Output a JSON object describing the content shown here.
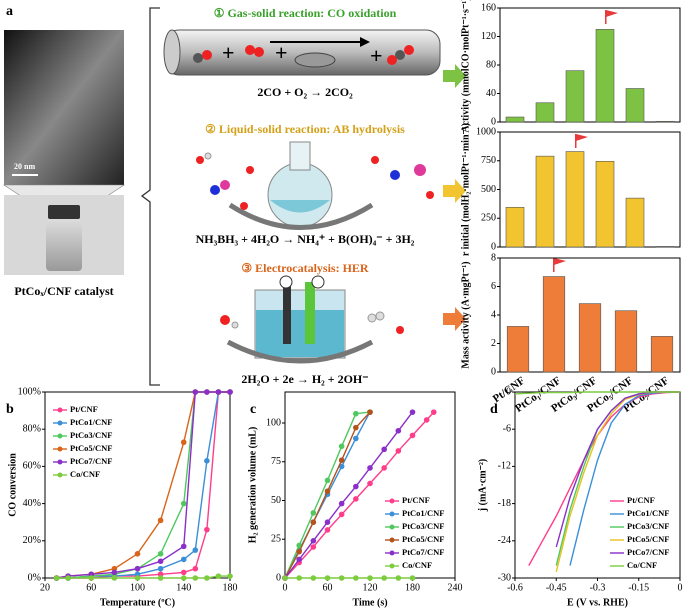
{
  "panel_labels": [
    "a",
    "b",
    "c",
    "d"
  ],
  "catalyst_label": "PtCoₓ/CNF catalyst",
  "scale_bar": "20 nm",
  "reactions": [
    {
      "title": "① Gas-solid reaction: CO oxidation",
      "equation": "2CO + O₂ → 2CO₂"
    },
    {
      "title": "② Liquid-solid reaction: AB hydrolysis",
      "equation": "NH₃BH₃ + 4H₂O → NH₄⁺ + B(OH)₄⁻ + 3H₂"
    },
    {
      "title": "③ Electrocatalysis: HER",
      "equation": "2H₂O + 2e → H₂ + 2OH⁻"
    }
  ],
  "chart_data": [
    {
      "type": "bar",
      "ylabel": "Activity (mmolCO·molPt⁻¹·s⁻¹)",
      "categories": [
        null,
        null,
        null,
        null,
        null,
        null
      ],
      "values": [
        7,
        27,
        72,
        130,
        47,
        1
      ],
      "color": "#7dc242",
      "ylim": [
        0,
        160
      ],
      "yticks": [
        0,
        40,
        80,
        120,
        160
      ]
    },
    {
      "type": "bar",
      "ylabel": "r initial (molH₂·molPt⁻¹·min⁻¹)",
      "categories": [
        null,
        null,
        null,
        null,
        null,
        null
      ],
      "values": [
        345,
        790,
        830,
        745,
        425,
        5
      ],
      "color": "#f2c530",
      "ylim": [
        0,
        1000
      ],
      "yticks": [
        0,
        250,
        500,
        750,
        1000
      ]
    },
    {
      "type": "bar",
      "ylabel": "Mass activity (A·mgPt⁻¹)",
      "categories": [
        "Pt/CNF",
        "PtCo₁/CNF",
        "PtCo₃/CNF",
        "PtCo₅/CNF",
        "PtCo₇/CNF"
      ],
      "values": [
        3.2,
        6.7,
        4.8,
        4.3,
        2.5
      ],
      "color": "#ee7d3a",
      "ylim": [
        0,
        8
      ],
      "yticks": [
        0,
        2,
        4,
        6,
        8
      ]
    },
    {
      "type": "line",
      "markers": true,
      "legend": "upper left",
      "xlabel": "Temperature (ºC)",
      "ylabel": "CO conversion",
      "x": [
        30,
        40,
        60,
        80,
        100,
        120,
        140,
        150,
        160,
        170,
        180
      ],
      "xlim": [
        20,
        180
      ],
      "xticks": [
        20,
        60,
        100,
        140,
        180
      ],
      "ylim": [
        0,
        100
      ],
      "yticks": [
        {
          "value": 0,
          "label": "0%"
        },
        {
          "value": 20,
          "label": "20%"
        },
        {
          "value": 40,
          "label": "40%"
        },
        {
          "value": 60,
          "label": "60%"
        },
        {
          "value": 80,
          "label": "80%"
        },
        {
          "value": 100,
          "label": "100%"
        }
      ],
      "series": [
        {
          "name": "Pt/CNF",
          "color": "#ff3d8b",
          "values": [
            0,
            0,
            0,
            1,
            1,
            2,
            3,
            5,
            26,
            100,
            100
          ]
        },
        {
          "name": "PtCo1/CNF",
          "color": "#3a8fd8",
          "values": [
            0,
            0,
            1,
            1,
            2,
            5,
            10,
            15,
            63,
            100,
            100
          ]
        },
        {
          "name": "PtCo3/CNF",
          "color": "#4fc95f",
          "values": [
            0,
            0,
            1,
            2,
            5,
            13,
            40,
            100,
            100,
            100,
            100
          ]
        },
        {
          "name": "PtCo5/CNF",
          "color": "#d9641a",
          "values": [
            0,
            1,
            2,
            5,
            13,
            31,
            73,
            100,
            100,
            100,
            100
          ]
        },
        {
          "name": "PtCo7/CNF",
          "color": "#8a2fc8",
          "values": [
            0,
            1,
            2,
            3,
            5,
            9,
            17,
            100,
            100,
            100,
            100
          ]
        },
        {
          "name": "Co/CNF",
          "color": "#7ccc3e",
          "values": [
            0,
            0,
            0,
            0,
            0,
            0,
            0,
            0,
            0,
            1,
            1
          ]
        }
      ]
    },
    {
      "type": "line",
      "markers": true,
      "legend": "lower right",
      "xlabel": "Time (s)",
      "ylabel": "H₂ generation volume (mL)",
      "x": [
        0,
        20,
        40,
        60,
        80,
        100,
        120,
        140,
        160,
        180,
        200,
        210
      ],
      "xlim": [
        0,
        240
      ],
      "xticks": [
        0,
        60,
        120,
        180,
        240
      ],
      "ylim": [
        0,
        120
      ],
      "yticks": [
        0,
        25,
        50,
        75,
        100
      ],
      "series": [
        {
          "name": "Pt/CNF",
          "color": "#ff3d8b",
          "values": [
            0,
            10,
            20,
            31,
            41,
            51,
            61,
            71,
            82,
            92,
            102,
            107
          ]
        },
        {
          "name": "PtCo1/CNF",
          "color": "#3a8fd8",
          "values": [
            0,
            18,
            36,
            54,
            72,
            90,
            107,
            null,
            null,
            null,
            null,
            null
          ]
        },
        {
          "name": "PtCo3/CNF",
          "color": "#4fc95f",
          "values": [
            0,
            21,
            42,
            63,
            85,
            106,
            107,
            null,
            null,
            null,
            null,
            null
          ]
        },
        {
          "name": "PtCo5/CNF",
          "color": "#b5531c",
          "values": [
            0,
            17,
            36,
            56,
            76,
            97,
            107,
            null,
            null,
            null,
            null,
            null
          ]
        },
        {
          "name": "PtCo7/CNF",
          "color": "#8a2fc8",
          "values": [
            0,
            12,
            24,
            36,
            48,
            59,
            71,
            83,
            95,
            107,
            null,
            null
          ]
        },
        {
          "name": "Co/CNF",
          "color": "#7ccc3e",
          "values": [
            0,
            0,
            0,
            0,
            0,
            0,
            0,
            0,
            0,
            0,
            null,
            null
          ]
        }
      ]
    },
    {
      "type": "line",
      "markers": false,
      "legend": "lower right",
      "xlabel": "E (V vs. RHE)",
      "ylabel": "j (mA·cm⁻²)",
      "x": [
        -0.6,
        -0.55,
        -0.5,
        -0.45,
        -0.4,
        -0.35,
        -0.3,
        -0.25,
        -0.2,
        -0.15,
        -0.1,
        -0.05,
        0
      ],
      "xlim": [
        -0.6,
        0
      ],
      "xticks": [
        -0.6,
        -0.45,
        -0.3,
        -0.15,
        0
      ],
      "ylim": [
        -30,
        0
      ],
      "yticks": [
        0,
        -6,
        -12,
        -18,
        -24,
        -30
      ],
      "series": [
        {
          "name": "Pt/CNF",
          "color": "#ff3d8b",
          "values": [
            null,
            -28,
            -24,
            -20,
            -15.5,
            -11,
            -7,
            -4,
            -2,
            -0.8,
            -0.3,
            -0.1,
            0
          ]
        },
        {
          "name": "PtCo1/CNF",
          "color": "#3a8fd8",
          "values": [
            null,
            null,
            null,
            null,
            -28,
            -19,
            -11,
            -5,
            -2,
            -0.6,
            -0.2,
            0,
            0
          ]
        },
        {
          "name": "PtCo3/CNF",
          "color": "#4fc95f",
          "values": [
            null,
            null,
            null,
            -28,
            -19,
            -12,
            -6,
            -3,
            -1,
            -0.3,
            0,
            0,
            0
          ]
        },
        {
          "name": "PtCo5/CNF",
          "color": "#e8c21e",
          "values": [
            null,
            null,
            null,
            -29,
            -20,
            -13,
            -7,
            -3.5,
            -1.2,
            -0.4,
            0,
            0,
            0
          ]
        },
        {
          "name": "PtCo7/CNF",
          "color": "#8a2fc8",
          "values": [
            null,
            null,
            null,
            -25,
            -17,
            -11,
            -6,
            -3,
            -1,
            -0.3,
            0,
            0,
            0
          ]
        },
        {
          "name": "Co/CNF",
          "color": "#7ccc3e",
          "values": [
            -0.3,
            -0.2,
            -0.1,
            -0.1,
            -0.1,
            0,
            0,
            0,
            0,
            0,
            0,
            0,
            0
          ]
        }
      ]
    }
  ]
}
